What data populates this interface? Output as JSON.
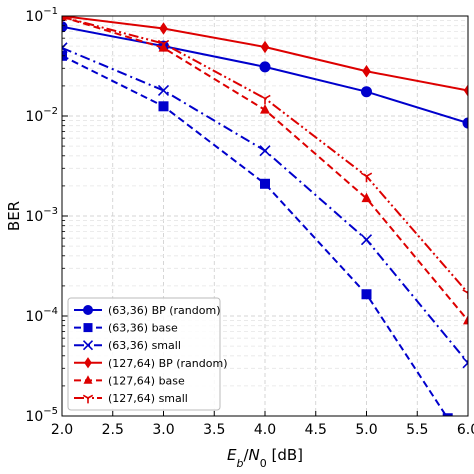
{
  "chart_data": {
    "type": "line",
    "xlabel": "E_b/N_0 [dB]",
    "xlabel_parts": {
      "E": "E",
      "b": "b",
      "slash": "/",
      "N": "N",
      "zero": "0",
      "unit": " [dB]"
    },
    "ylabel": "BER",
    "xlim": [
      2.0,
      6.0
    ],
    "ylim": [
      1e-05,
      0.1
    ],
    "yscale": "log",
    "grid": true,
    "legend_position": "lower-left",
    "x_ticks": [
      2.0,
      2.5,
      3.0,
      3.5,
      4.0,
      4.5,
      5.0,
      5.5,
      6.0
    ],
    "x_tick_labels": [
      "2.0",
      "2.5",
      "3.0",
      "3.5",
      "4.0",
      "4.5",
      "5.0",
      "5.5",
      "6.0"
    ],
    "y_ticks": [
      {
        "value": 0.1,
        "base": "10",
        "exp": "−1"
      },
      {
        "value": 0.01,
        "base": "10",
        "exp": "−2"
      },
      {
        "value": 0.001,
        "base": "10",
        "exp": "−3"
      },
      {
        "value": 0.0001,
        "base": "10",
        "exp": "−4"
      },
      {
        "value": 1e-05,
        "base": "10",
        "exp": "−5"
      }
    ],
    "series": [
      {
        "name": "(63,36) BP (random)",
        "color": "#0000cc",
        "dash": "solid",
        "marker": "circle",
        "points": [
          [
            2.0,
            0.078
          ],
          [
            3.0,
            0.05
          ],
          [
            4.0,
            0.031
          ],
          [
            5.0,
            0.0175
          ],
          [
            6.0,
            0.0085
          ]
        ]
      },
      {
        "name": "(63,36) base",
        "color": "#0000cc",
        "dash": "dashed",
        "marker": "square",
        "points": [
          [
            2.0,
            0.04
          ],
          [
            3.0,
            0.0125
          ],
          [
            4.0,
            0.0021
          ],
          [
            5.0,
            0.000165
          ],
          [
            5.8,
            9.5e-06
          ]
        ]
      },
      {
        "name": "(63,36) small",
        "color": "#0000cc",
        "dash": "dashdot",
        "marker": "x",
        "points": [
          [
            2.0,
            0.048
          ],
          [
            3.0,
            0.018
          ],
          [
            4.0,
            0.0045
          ],
          [
            5.0,
            0.00058
          ],
          [
            6.0,
            3.4e-05
          ]
        ]
      },
      {
        "name": "(127,64) BP (random)",
        "color": "#dd0000",
        "dash": "solid",
        "marker": "diamond",
        "points": [
          [
            2.0,
            0.1
          ],
          [
            3.0,
            0.075
          ],
          [
            4.0,
            0.049
          ],
          [
            5.0,
            0.028
          ],
          [
            6.0,
            0.018
          ]
        ]
      },
      {
        "name": "(127,64) base",
        "color": "#dd0000",
        "dash": "dashed",
        "marker": "triangle",
        "points": [
          [
            2.0,
            0.098
          ],
          [
            3.0,
            0.048
          ],
          [
            4.0,
            0.0115
          ],
          [
            5.0,
            0.0015
          ],
          [
            6.0,
            9e-05
          ]
        ]
      },
      {
        "name": "(127,64) small",
        "color": "#dd0000",
        "dash": "dashdotdot",
        "marker": "tri_down",
        "points": [
          [
            2.0,
            0.098
          ],
          [
            3.0,
            0.053
          ],
          [
            4.0,
            0.015
          ],
          [
            5.0,
            0.0025
          ],
          [
            6.0,
            0.00017
          ]
        ]
      }
    ]
  }
}
